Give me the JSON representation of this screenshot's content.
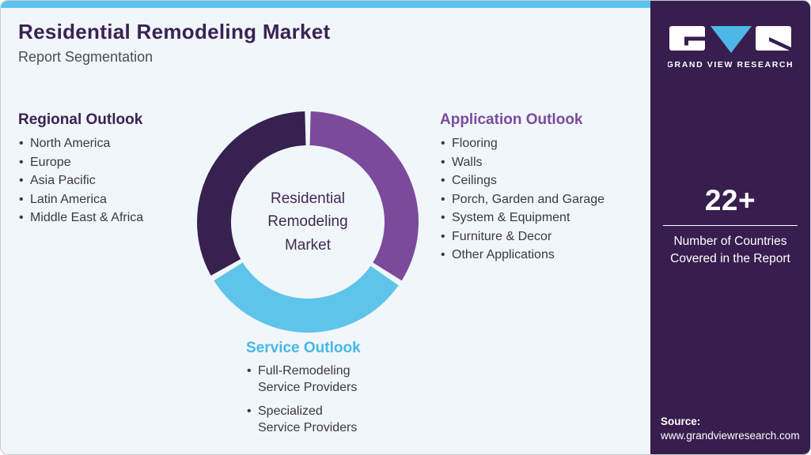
{
  "header": {
    "title": "Residential Remodeling Market",
    "subtitle": "Report Segmentation"
  },
  "donut": {
    "center_label": "Residential\nRemodeling\nMarket",
    "segments": [
      {
        "id": "application",
        "label": "Application Outlook",
        "color": "#7b4a9b",
        "start_angle": 1.5,
        "end_angle": 122
      },
      {
        "id": "service",
        "label": "Service Outlook",
        "color": "#5fc4ea",
        "start_angle": 125,
        "end_angle": 238
      },
      {
        "id": "regional",
        "label": "Regional Outlook",
        "color": "#37214e",
        "start_angle": 241,
        "end_angle": 358.5
      }
    ]
  },
  "sections": {
    "regional": {
      "heading": "Regional Outlook",
      "items": [
        "North America",
        "Europe",
        "Asia Pacific",
        "Latin America",
        "Middle East & Africa"
      ]
    },
    "application": {
      "heading": "Application Outlook",
      "items": [
        "Flooring",
        "Walls",
        "Ceilings",
        "Porch, Garden and Garage",
        "System & Equipment",
        "Furniture & Decor",
        "Other Applications"
      ]
    },
    "service": {
      "heading": "Service Outlook",
      "items": [
        "Full-Remodeling\nService Providers",
        "Specialized\nService Providers"
      ]
    }
  },
  "sidebar": {
    "logo": {
      "brand": "GRAND VIEW RESEARCH"
    },
    "stat": {
      "value": "22+",
      "label": "Number of Countries\nCovered in the Report"
    },
    "source": {
      "label": "Source:",
      "website": "www.grandviewresearch.com"
    }
  },
  "colors": {
    "accent_blue": "#5cc3ef",
    "sidebar_purple": "#371e4e",
    "medium_purple": "#7b4a9b",
    "light_blue": "#5fc4ea",
    "title_purple": "#3b2254",
    "background": "#f0f6fa"
  }
}
